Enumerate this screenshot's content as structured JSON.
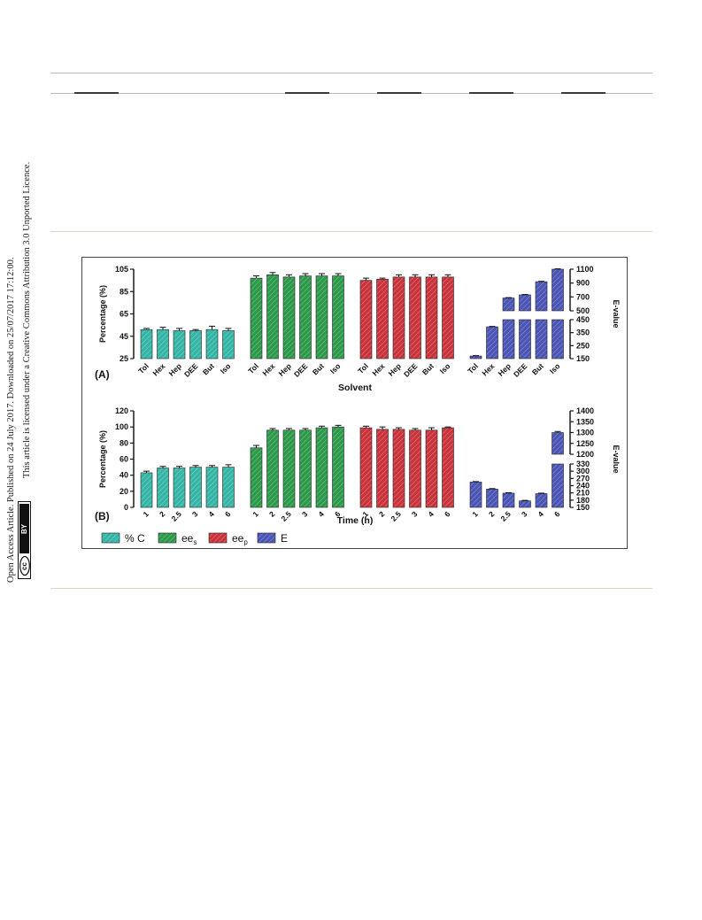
{
  "sidebar": {
    "line1": "Open Access Article. Published on 24 July 2017. Downloaded on 25/07/2017 17:12:00.",
    "line2": "This article is licensed under a Creative Commons Attribution 3.0 Unported Licence.",
    "cc_text": "cc",
    "by_text": "BY"
  },
  "colors": {
    "conversion": "#35b5a6",
    "ees": "#2c9a4a",
    "eep": "#c9333b",
    "E": "#4a55b5",
    "axis": "#1a1a1a"
  },
  "chart_data": [
    {
      "panel": "(A)",
      "type": "bar",
      "xlabel": "Solvent",
      "ylabel": "Percentage (%)",
      "ylabel_right": "E-value",
      "ylim": [
        25,
        105
      ],
      "yticks": [
        25,
        45,
        65,
        85,
        105
      ],
      "right_axis": {
        "lower": {
          "range": [
            150,
            450
          ],
          "ticks": [
            150,
            250,
            350,
            450
          ]
        },
        "upper": {
          "range": [
            500,
            1100
          ],
          "ticks": [
            500,
            700,
            900,
            1100
          ]
        }
      },
      "groups": [
        {
          "series": "% C",
          "axis": "left",
          "categories": [
            "Tol",
            "Hex",
            "Hep",
            "DEE",
            "But",
            "Iso"
          ],
          "values": [
            51,
            51,
            50,
            50,
            51,
            50
          ],
          "errors": [
            1,
            2,
            2,
            1,
            3,
            2
          ]
        },
        {
          "series": "ees",
          "axis": "left",
          "categories": [
            "Tol",
            "Hex",
            "Hep",
            "DEE",
            "But",
            "Iso"
          ],
          "values": [
            97,
            100,
            98,
            99,
            99,
            99
          ],
          "errors": [
            2,
            2,
            2,
            2,
            2,
            2
          ]
        },
        {
          "series": "eep",
          "axis": "left",
          "categories": [
            "Tol",
            "Hex",
            "Hep",
            "DEE",
            "But",
            "Iso"
          ],
          "values": [
            95,
            96,
            98,
            98,
            98,
            98
          ],
          "errors": [
            2,
            1,
            2,
            2,
            2,
            2
          ]
        },
        {
          "series": "E",
          "axis": "right",
          "categories": [
            "Tol",
            "Hex",
            "Hep",
            "DEE",
            "But",
            "Iso"
          ],
          "values": [
            170,
            395,
            685,
            730,
            920,
            1100
          ],
          "errors": [
            3,
            3,
            5,
            5,
            5,
            5
          ]
        }
      ]
    },
    {
      "panel": "(B)",
      "type": "bar",
      "xlabel": "Time (h)",
      "ylabel": "Percentage (%)",
      "ylabel_right": "E-value",
      "ylim": [
        0,
        120
      ],
      "yticks": [
        0,
        20,
        40,
        60,
        80,
        100,
        120
      ],
      "right_axis": {
        "lower": {
          "range": [
            150,
            330
          ],
          "ticks": [
            150,
            180,
            210,
            240,
            270,
            300,
            330
          ]
        },
        "upper": {
          "range": [
            1200,
            1400
          ],
          "ticks": [
            1200,
            1250,
            1300,
            1350,
            1400
          ]
        }
      },
      "groups": [
        {
          "series": "% C",
          "axis": "left",
          "categories": [
            "1",
            "2",
            "2.5",
            "3",
            "4",
            "6"
          ],
          "values": [
            43,
            49,
            49,
            50,
            50,
            50
          ],
          "errors": [
            2,
            2,
            2,
            2,
            2,
            3
          ]
        },
        {
          "series": "ees",
          "axis": "left",
          "categories": [
            "1",
            "2",
            "2.5",
            "3",
            "4",
            "6"
          ],
          "values": [
            74,
            96,
            96,
            96,
            99,
            100
          ],
          "errors": [
            3,
            2,
            2,
            2,
            2,
            2
          ]
        },
        {
          "series": "eep",
          "axis": "left",
          "categories": [
            "1",
            "2",
            "2.5",
            "3",
            "4",
            "6"
          ],
          "values": [
            99,
            97,
            97,
            96,
            96,
            99
          ],
          "errors": [
            2,
            3,
            2,
            2,
            3,
            1
          ]
        },
        {
          "series": "E",
          "axis": "right",
          "categories": [
            "1",
            "2",
            "2.5",
            "3",
            "4",
            "6"
          ],
          "values": [
            255,
            226,
            209,
            177,
            207,
            1300
          ],
          "errors": [
            2,
            2,
            2,
            2,
            2,
            5
          ]
        }
      ]
    }
  ],
  "legend": [
    {
      "label": "% C",
      "color_key": "conversion"
    },
    {
      "label": "ee",
      "sub": "s",
      "color_key": "ees"
    },
    {
      "label": "ee",
      "sub": "p",
      "color_key": "eep"
    },
    {
      "label": "E",
      "color_key": "E"
    }
  ]
}
